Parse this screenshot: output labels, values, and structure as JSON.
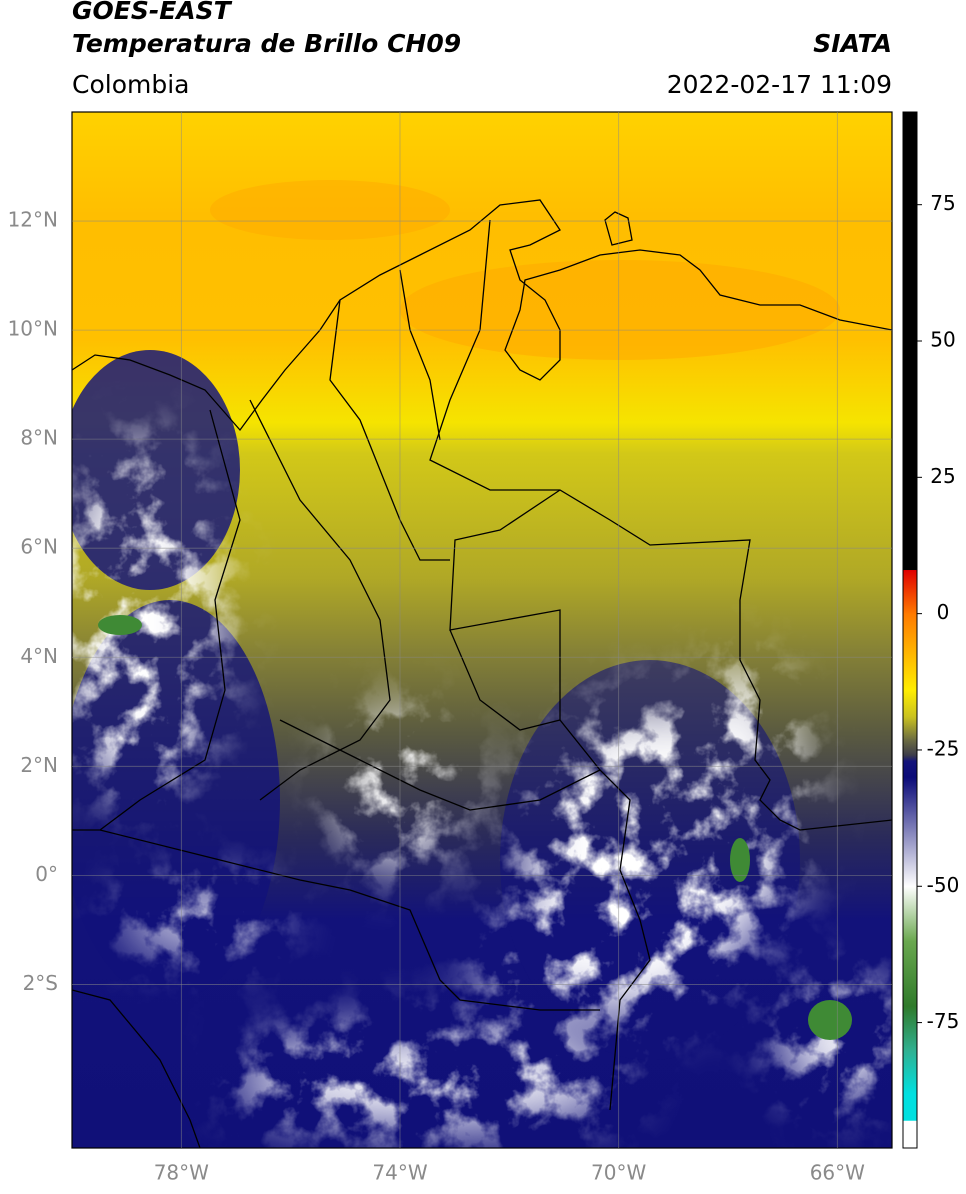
{
  "header": {
    "title": "GOES-EAST",
    "subtitle": "Temperatura de Brillo CH09",
    "source": "SIATA",
    "region": "Colombia",
    "datetime": "2022-02-17 11:09"
  },
  "map": {
    "xlim": [
      -80,
      -65
    ],
    "ylim": [
      -5,
      14
    ],
    "grid": true,
    "xticks": [
      {
        "value": -78,
        "label": "78°W"
      },
      {
        "value": -74,
        "label": "74°W"
      },
      {
        "value": -70,
        "label": "70°W"
      },
      {
        "value": -66,
        "label": "66°W"
      }
    ],
    "yticks": [
      {
        "value": 12,
        "label": "12°N"
      },
      {
        "value": 10,
        "label": "10°N"
      },
      {
        "value": 8,
        "label": "8°N"
      },
      {
        "value": 6,
        "label": "6°N"
      },
      {
        "value": 4,
        "label": "4°N"
      },
      {
        "value": 2,
        "label": "2°N"
      },
      {
        "value": 0,
        "label": "0°"
      },
      {
        "value": -2,
        "label": "2°S"
      }
    ],
    "colorbar": {
      "lim": [
        -98,
        92
      ],
      "ticks": [
        75,
        50,
        25,
        0,
        -25,
        -50,
        -75
      ],
      "stops": [
        {
          "value": 92,
          "color": "#000000"
        },
        {
          "value": 8,
          "color": "#000000"
        },
        {
          "value": 8,
          "color": "#e00000"
        },
        {
          "value": 0,
          "color": "#ff7a00"
        },
        {
          "value": -14,
          "color": "#ffee00"
        },
        {
          "value": -19,
          "color": "#c8c020"
        },
        {
          "value": -23,
          "color": "#6e6e40"
        },
        {
          "value": -26,
          "color": "#3a3a4a"
        },
        {
          "value": -27,
          "color": "#14147a"
        },
        {
          "value": -30,
          "color": "#0a0a78"
        },
        {
          "value": -50,
          "color": "#ffffff"
        },
        {
          "value": -60,
          "color": "#6aa84f"
        },
        {
          "value": -72,
          "color": "#2f7a2a"
        },
        {
          "value": -80,
          "color": "#30b090"
        },
        {
          "value": -88,
          "color": "#00e0e0"
        },
        {
          "value": -93,
          "color": "#00e0e0"
        },
        {
          "value": -93,
          "color": "#ffffff"
        },
        {
          "value": -98,
          "color": "#ffffff"
        }
      ]
    }
  }
}
